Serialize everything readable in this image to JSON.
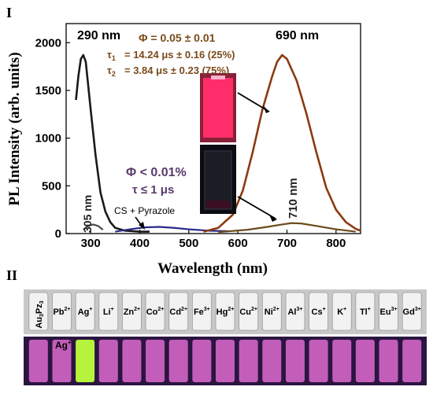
{
  "panel_labels": {
    "top": "I",
    "bottom": "II"
  },
  "chart_data": {
    "type": "line",
    "title": "",
    "xlabel": "Wavelength (nm)",
    "ylabel": "PL Intensity (arb. units)",
    "xlim": [
      250,
      850
    ],
    "ylim": [
      0,
      2200
    ],
    "xticks": [
      "300",
      "400",
      "500",
      "600",
      "700",
      "800"
    ],
    "yticks": [
      "0",
      "500",
      "1000",
      "1500",
      "2000"
    ],
    "series": [
      {
        "color": "#1a1a1a",
        "x": [
          270,
          275,
          280,
          285,
          290,
          295,
          300,
          310,
          320,
          330,
          340,
          350,
          370,
          400,
          420
        ],
        "y": [
          1400,
          1650,
          1830,
          1870,
          1800,
          1550,
          1300,
          820,
          430,
          230,
          120,
          60,
          30,
          20,
          20
        ]
      },
      {
        "color": "#4a4a4a",
        "x": [
          285,
          295,
          305,
          315,
          325
        ],
        "y": [
          40,
          80,
          95,
          80,
          40
        ]
      },
      {
        "color": "#2a2a8a",
        "x": [
          350,
          380,
          410,
          440,
          470,
          500,
          540,
          580
        ],
        "y": [
          20,
          45,
          65,
          70,
          60,
          45,
          30,
          25
        ]
      },
      {
        "color": "#8b3a10",
        "x": [
          530,
          560,
          590,
          610,
          630,
          650,
          670,
          680,
          690,
          700,
          720,
          740,
          760,
          780,
          800,
          820,
          840,
          850
        ],
        "y": [
          20,
          60,
          200,
          450,
          850,
          1300,
          1650,
          1800,
          1870,
          1830,
          1600,
          1250,
          850,
          480,
          250,
          120,
          50,
          30
        ]
      },
      {
        "color": "#6b4a1a",
        "x": [
          560,
          620,
          660,
          690,
          710,
          730,
          760,
          800,
          840
        ],
        "y": [
          15,
          40,
          70,
          95,
          110,
          105,
          80,
          45,
          20
        ]
      }
    ],
    "annotations": {
      "peak_left": "290 nm",
      "peak_right": "690 nm",
      "phi_top": "Φ =  0.05 ± 0.01",
      "tau1_top": "= 14.24 μs ± 0.16 (25%)",
      "tau2_top": "= 3.84 μs ± 0.23 (75%)",
      "phi_bottom": "Φ  < 0.01%",
      "tau_bottom": "τ  ≤  1 μs",
      "label_305": "305 nm",
      "label_710": "710 nm",
      "label_cs": "CS + Pyrazole"
    }
  },
  "vial_labels": [
    "Au3Pz3",
    "Pb2+",
    "Ag+",
    "Li+",
    "Zn2+",
    "Co2+",
    "Cd2+",
    "Fe3+",
    "Hg2+",
    "Cu2+",
    "Ni2+",
    "Al3+",
    "Cs+",
    "K+",
    "Tl+",
    "Eu3+",
    "Gd3+"
  ],
  "uv_label": "Ag+",
  "colors": {
    "vis_panel": "#c9c9c9",
    "uv_panel": "#2a1540",
    "vial_glow": "#e86fd8",
    "ag_glow": "#b7f23c",
    "red_glow": "#ff3b78"
  }
}
